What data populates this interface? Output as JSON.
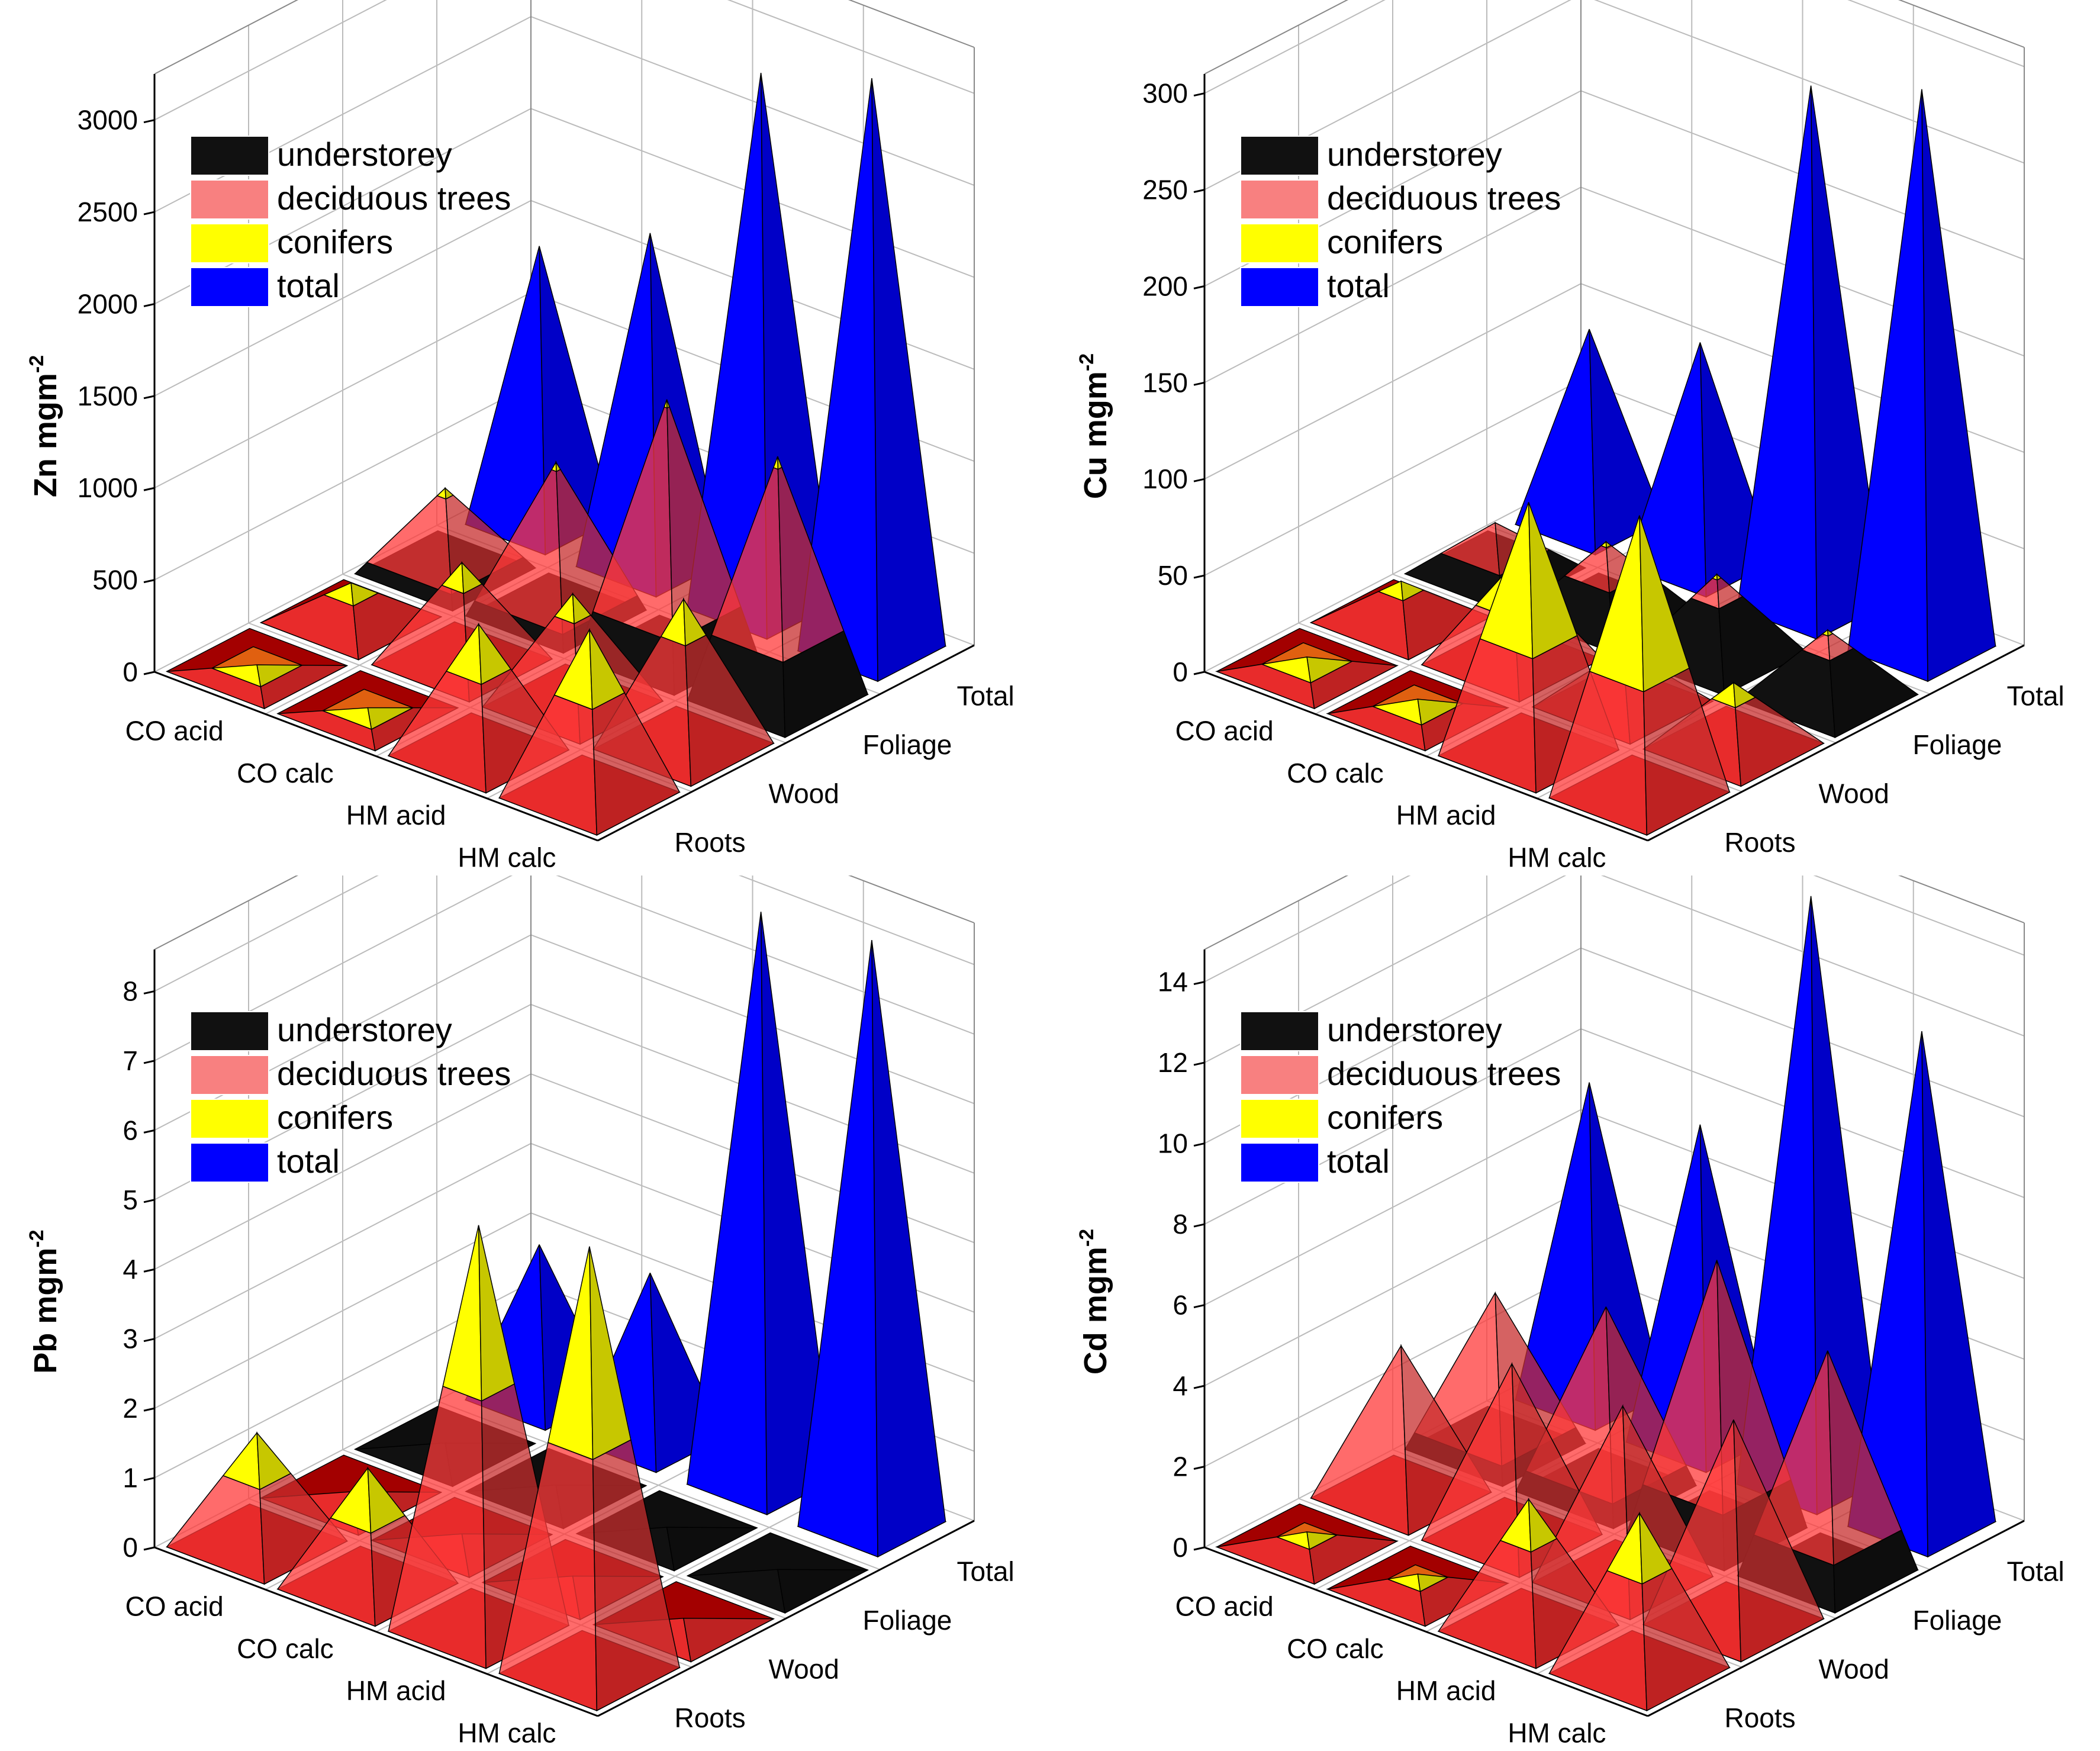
{
  "legend": [
    "understorey",
    "deciduous trees",
    "conifers",
    "total"
  ],
  "colors": {
    "understorey": "#111111",
    "deciduous": "#ff3a3a",
    "conifers": "#ffff00",
    "total": "#0000ff",
    "grid": "#bbbbbb"
  },
  "chart_data": [
    {
      "type": "3d-pyramid",
      "ylabel": "Zn mgm",
      "ylabel_sup": "-2",
      "ylim": [
        0,
        3250
      ],
      "yticks": [
        0,
        500,
        1000,
        1500,
        2000,
        2500,
        3000
      ],
      "sites": [
        "CO acid",
        "CO calc",
        "HM acid",
        "HM calc"
      ],
      "compartments": [
        "Roots",
        "Wood",
        "Foliage",
        "Total"
      ],
      "layers": {
        "Roots": {
          "understorey": [
            0,
            0,
            0,
            0
          ],
          "deciduous": [
            10,
            8,
            450,
            550
          ],
          "conifers": [
            10,
            8,
            250,
            350
          ]
        },
        "Wood": {
          "understorey": [
            0,
            0,
            0,
            0
          ],
          "deciduous": [
            140,
            420,
            480,
            600
          ],
          "conifers": [
            60,
            120,
            120,
            200
          ]
        },
        "Foliage": {
          "understorey": [
            60,
            80,
            250,
            350
          ],
          "deciduous": [
            350,
            700,
            1100,
            900
          ],
          "conifers": [
            40,
            40,
            40,
            60
          ]
        }
      },
      "total": [
        1500,
        1800,
        2900,
        3100
      ]
    },
    {
      "type": "3d-pyramid",
      "ylabel": "Cu mgm",
      "ylabel_sup": "-2",
      "ylim": [
        0,
        310
      ],
      "yticks": [
        0,
        50,
        100,
        150,
        200,
        250,
        300
      ],
      "sites": [
        "CO acid",
        "CO calc",
        "HM acid",
        "HM calc"
      ],
      "compartments": [
        "Roots",
        "Wood",
        "Foliage",
        "Total"
      ],
      "layers": {
        "Roots": {
          "understorey": [
            0,
            0,
            0,
            0
          ],
          "deciduous": [
            3,
            3,
            60,
            65
          ],
          "conifers": [
            3,
            3,
            70,
            80
          ]
        },
        "Wood": {
          "understorey": [
            0,
            0,
            0,
            0
          ],
          "deciduous": [
            15,
            30,
            20,
            25
          ],
          "conifers": [
            5,
            20,
            8,
            8
          ]
        },
        "Foliage": {
          "understorey": [
            10,
            20,
            30,
            25
          ],
          "deciduous": [
            15,
            15,
            10,
            8
          ],
          "conifers": [
            0,
            2,
            2,
            2
          ]
        }
      },
      "total": [
        100,
        115,
        270,
        290
      ]
    },
    {
      "type": "3d-pyramid",
      "ylabel": "Pb mgm",
      "ylabel_sup": "-2",
      "ylim": [
        0,
        8.6
      ],
      "yticks": [
        0,
        1,
        2,
        3,
        4,
        5,
        6,
        7,
        8
      ],
      "sites": [
        "CO acid",
        "CO calc",
        "HM acid",
        "HM calc"
      ],
      "compartments": [
        "Roots",
        "Wood",
        "Foliage",
        "Total"
      ],
      "layers": {
        "Roots": {
          "understorey": [
            0,
            0,
            0,
            0
          ],
          "deciduous": [
            1.0,
            1.0,
            3.5,
            3.3
          ],
          "conifers": [
            0.6,
            0.7,
            2.3,
            2.8
          ]
        },
        "Wood": {
          "understorey": [
            0,
            0,
            0,
            0
          ],
          "deciduous": [
            0.05,
            0.05,
            0.05,
            0.05
          ],
          "conifers": [
            0,
            0,
            0,
            0
          ]
        },
        "Foliage": {
          "understorey": [
            0.05,
            0.05,
            0.05,
            0.05
          ],
          "deciduous": [
            0,
            0,
            0,
            0
          ],
          "conifers": [
            0,
            0,
            0,
            0
          ]
        }
      },
      "total": [
        2.2,
        2.4,
        8.2,
        8.4
      ]
    },
    {
      "type": "3d-pyramid",
      "ylabel": "Cd mgm",
      "ylabel_sup": "-2",
      "ylim": [
        0,
        14.8
      ],
      "yticks": [
        0,
        2,
        4,
        6,
        8,
        10,
        12,
        14
      ],
      "sites": [
        "CO acid",
        "CO calc",
        "HM acid",
        "HM calc"
      ],
      "compartments": [
        "Roots",
        "Wood",
        "Foliage",
        "Total"
      ],
      "layers": {
        "Roots": {
          "understorey": [
            0,
            0,
            0,
            0
          ],
          "deciduous": [
            0.2,
            0.2,
            2.2,
            2.5
          ],
          "conifers": [
            0.1,
            0.1,
            1.0,
            1.4
          ]
        },
        "Wood": {
          "understorey": [
            0,
            0,
            0,
            0
          ],
          "deciduous": [
            3.7,
            4.3,
            4.3,
            5.0
          ],
          "conifers": [
            0,
            0,
            0,
            0
          ]
        },
        "Foliage": {
          "understorey": [
            0.4,
            0.5,
            1.2,
            1.0
          ],
          "deciduous": [
            3.4,
            4.0,
            5.5,
            4.5
          ],
          "conifers": [
            0,
            0,
            0,
            0
          ]
        }
      },
      "total": [
        7.8,
        7.8,
        14.5,
        12.2
      ]
    }
  ]
}
